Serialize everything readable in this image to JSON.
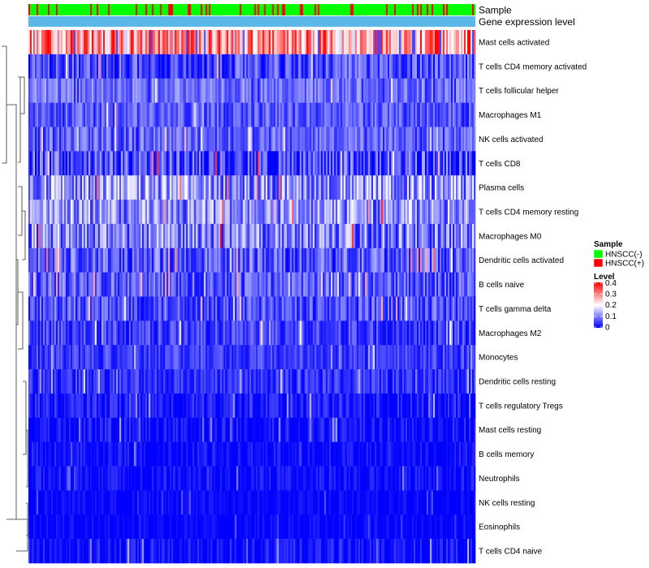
{
  "chart_data": {
    "type": "heatmap",
    "title": "",
    "annotation_tracks": [
      "Sample",
      "Gene expression level"
    ],
    "rows": [
      {
        "label": "Mast cells activated",
        "mean": 0.28,
        "spread": 0.12
      },
      {
        "label": "T cells CD4 memory activated",
        "mean": 0.06,
        "spread": 0.07
      },
      {
        "label": "T cells follicular helper",
        "mean": 0.09,
        "spread": 0.05
      },
      {
        "label": "Macrophages M1",
        "mean": 0.07,
        "spread": 0.05
      },
      {
        "label": "NK cells activated",
        "mean": 0.08,
        "spread": 0.05
      },
      {
        "label": "T cells CD8",
        "mean": 0.05,
        "spread": 0.09
      },
      {
        "label": "Plasma cells",
        "mean": 0.12,
        "spread": 0.09
      },
      {
        "label": "T cells CD4 memory resting",
        "mean": 0.12,
        "spread": 0.08
      },
      {
        "label": "Macrophages M0",
        "mean": 0.1,
        "spread": 0.09
      },
      {
        "label": "Dendritic cells activated",
        "mean": 0.07,
        "spread": 0.07
      },
      {
        "label": "B cells naive",
        "mean": 0.07,
        "spread": 0.06
      },
      {
        "label": "T cells gamma delta",
        "mean": 0.06,
        "spread": 0.06
      },
      {
        "label": "Macrophages M2",
        "mean": 0.05,
        "spread": 0.05
      },
      {
        "label": "Monocytes",
        "mean": 0.05,
        "spread": 0.04
      },
      {
        "label": "Dendritic cells resting",
        "mean": 0.04,
        "spread": 0.04
      },
      {
        "label": "T cells regulatory  Tregs",
        "mean": 0.02,
        "spread": 0.04
      },
      {
        "label": "Mast cells resting",
        "mean": 0.01,
        "spread": 0.04
      },
      {
        "label": "B cells memory",
        "mean": 0.01,
        "spread": 0.03
      },
      {
        "label": "Neutrophils",
        "mean": 0.01,
        "spread": 0.03
      },
      {
        "label": "NK cells resting",
        "mean": 0.005,
        "spread": 0.02
      },
      {
        "label": "Eosinophils",
        "mean": 0.005,
        "spread": 0.02
      },
      {
        "label": "T cells CD4 naive",
        "mean": 0.01,
        "spread": 0.04
      }
    ],
    "n_samples": 275,
    "sample_positive_fraction": 0.15,
    "color_scale": {
      "min": 0,
      "max": 0.4,
      "low": "#0000ff",
      "mid": "#ffffff",
      "high": "#ff0000"
    },
    "legend": {
      "position": "right",
      "sample_title": "Sample",
      "sample_items": [
        {
          "label": "HNSCC(-)",
          "color": "#00ff00"
        },
        {
          "label": "HNSCC(+)",
          "color": "#ff0000"
        }
      ],
      "level_title": "Level",
      "level_ticks": [
        "0.4",
        "0.3",
        "0.2",
        "0.1",
        "0"
      ]
    },
    "colors": {
      "sample_neg": "#00ff00",
      "sample_pos": "#ff0000",
      "gene_track": "#5bb8e8"
    }
  }
}
